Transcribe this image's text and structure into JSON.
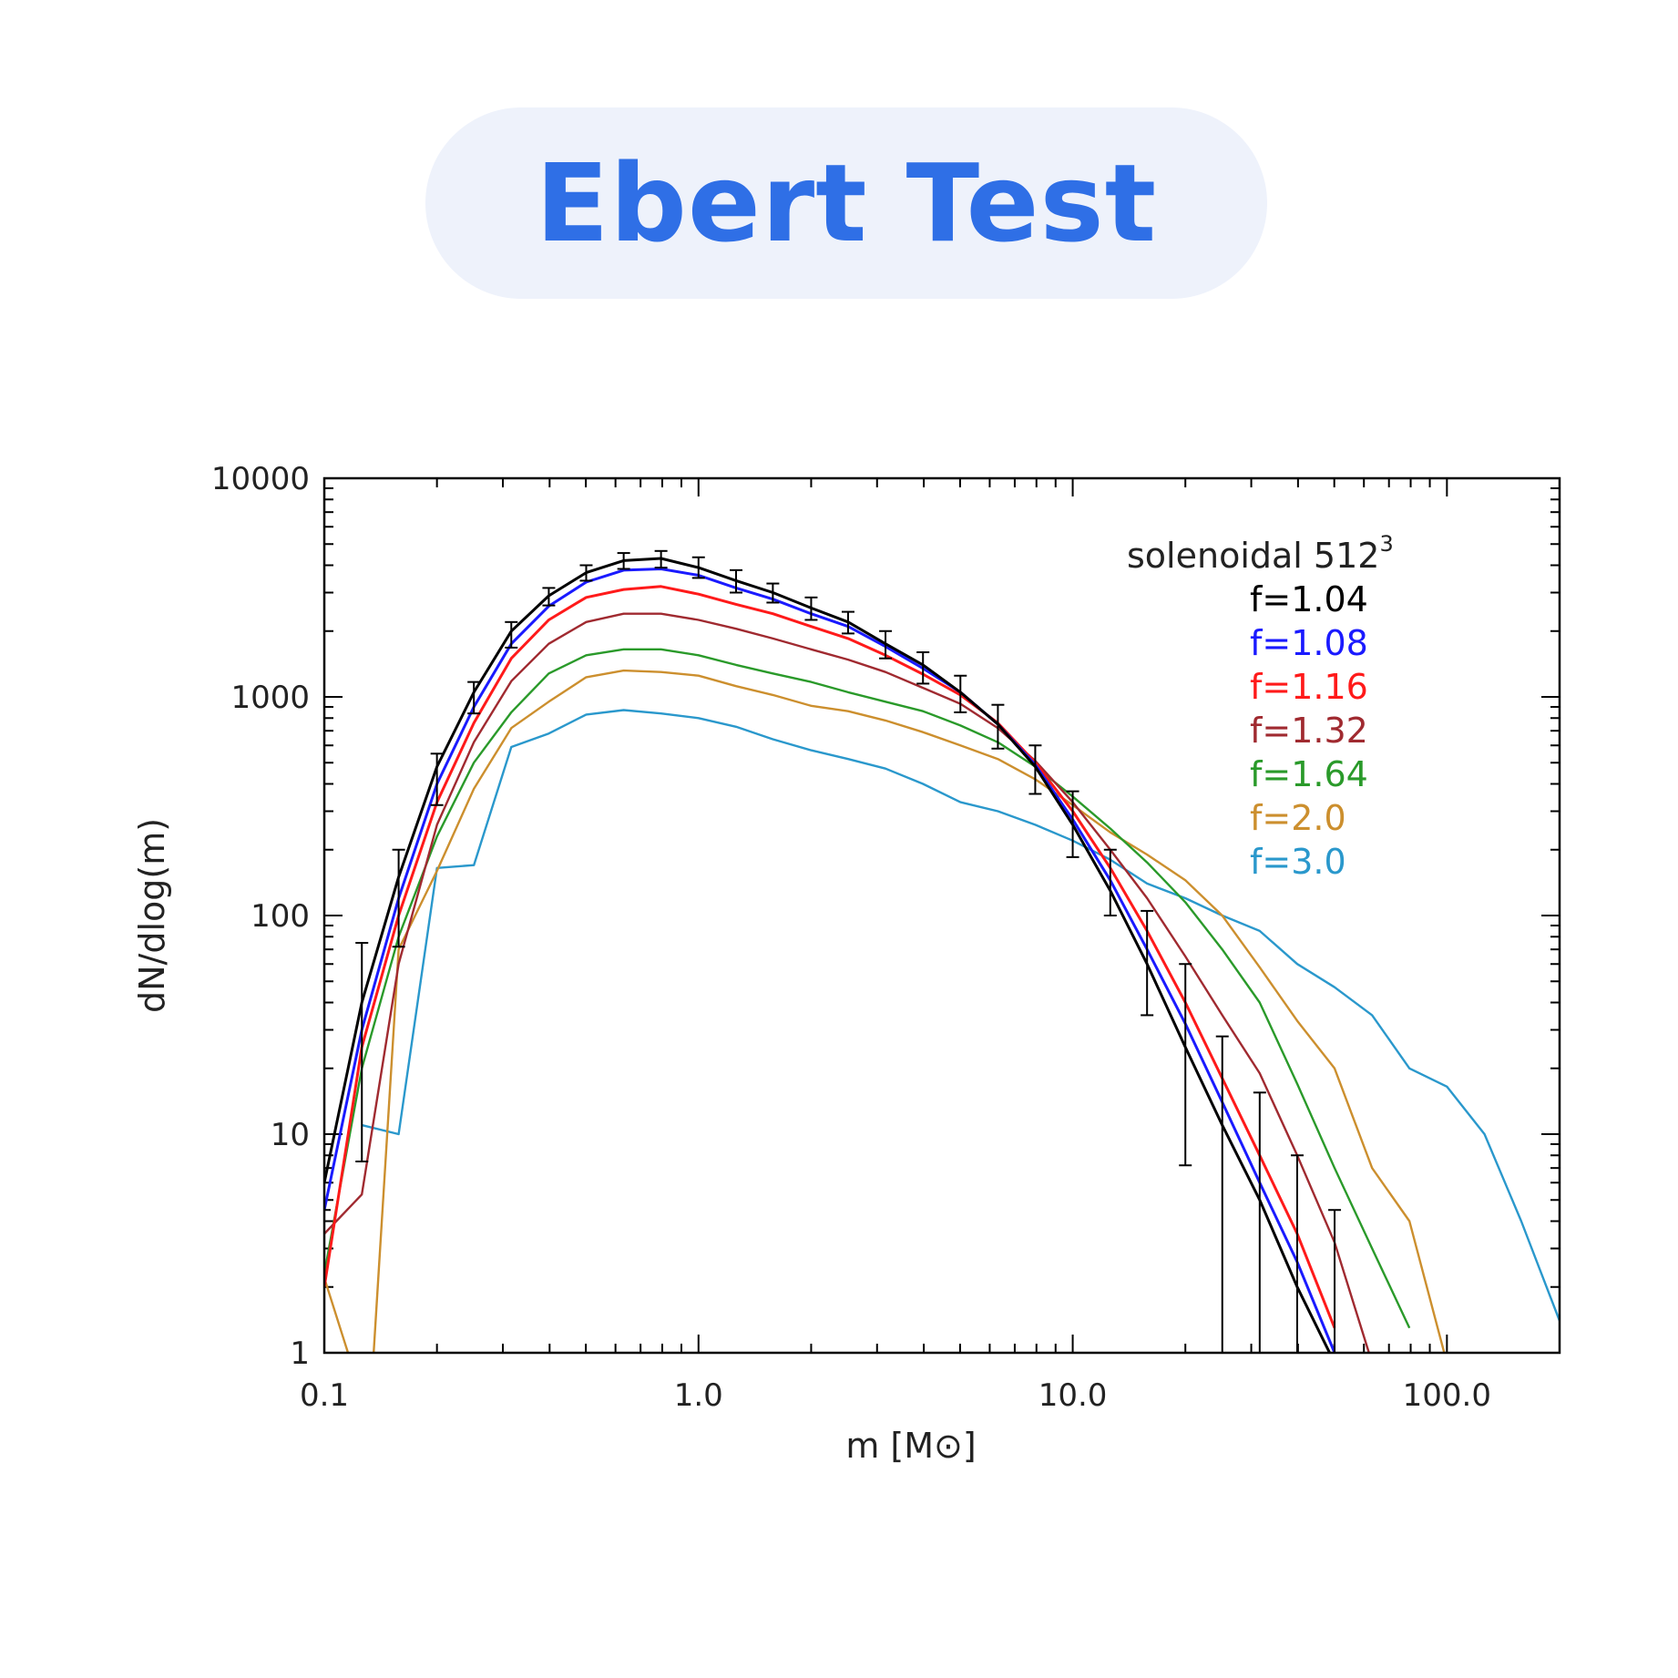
{
  "title": "Ebert Test",
  "chart_data": {
    "type": "line",
    "xscale": "log",
    "yscale": "log",
    "xlim": [
      0.1,
      200
    ],
    "ylim": [
      1,
      10000
    ],
    "xlabel": "m [M⊙]",
    "ylabel": "dN/dlog(m)",
    "xticks": [
      "0.1",
      "1.0",
      "10.0",
      "100.0"
    ],
    "yticks": [
      "1",
      "10",
      "100",
      "1000",
      "10000"
    ],
    "legend_title": "solenoidal  512",
    "legend_title_sup": "3",
    "legend_position": "top-right",
    "series": [
      {
        "name": "f=1.04",
        "color": "#000000",
        "x": [
          0.1,
          0.126,
          0.158,
          0.2,
          0.251,
          0.316,
          0.398,
          0.501,
          0.631,
          0.794,
          1.0,
          1.26,
          1.58,
          2.0,
          2.51,
          3.16,
          3.98,
          5.01,
          6.31,
          7.94,
          10.0,
          12.6,
          15.8,
          20.0,
          25.1,
          31.6,
          39.8,
          50.1
        ],
        "y": [
          6,
          40,
          150,
          480,
          1050,
          2000,
          2900,
          3700,
          4200,
          4300,
          3900,
          3400,
          3000,
          2550,
          2200,
          1750,
          1400,
          1050,
          750,
          480,
          260,
          130,
          60,
          25,
          11,
          5,
          2,
          0.9
        ]
      },
      {
        "name": "f=1.08",
        "color": "#1a1aff",
        "x": [
          0.1,
          0.126,
          0.158,
          0.2,
          0.251,
          0.316,
          0.398,
          0.501,
          0.631,
          0.794,
          1.0,
          1.26,
          1.58,
          2.0,
          2.51,
          3.16,
          3.98,
          5.01,
          6.31,
          7.94,
          10.0,
          12.6,
          15.8,
          20.0,
          25.1,
          31.6,
          39.8,
          50.1
        ],
        "y": [
          4.5,
          30,
          120,
          400,
          900,
          1750,
          2600,
          3350,
          3800,
          3850,
          3600,
          3150,
          2800,
          2400,
          2100,
          1700,
          1350,
          1050,
          750,
          490,
          275,
          145,
          70,
          32,
          14,
          6,
          2.6,
          1
        ]
      },
      {
        "name": "f=1.16",
        "color": "#ff1a1a",
        "x": [
          0.1,
          0.126,
          0.158,
          0.2,
          0.251,
          0.316,
          0.398,
          0.501,
          0.631,
          0.794,
          1.0,
          1.26,
          1.58,
          2.0,
          2.51,
          3.16,
          3.98,
          5.01,
          6.31,
          7.94,
          10.0,
          12.6,
          15.8,
          20.0,
          25.1,
          31.6,
          39.8,
          50.1
        ],
        "y": [
          2,
          25,
          100,
          330,
          760,
          1500,
          2250,
          2850,
          3100,
          3200,
          2950,
          2650,
          2400,
          2100,
          1850,
          1550,
          1270,
          1020,
          760,
          500,
          300,
          165,
          85,
          40,
          18,
          8,
          3.5,
          1.3
        ]
      },
      {
        "name": "f=1.32",
        "color": "#a02a30",
        "x": [
          0.1,
          0.126,
          0.158,
          0.2,
          0.251,
          0.316,
          0.398,
          0.501,
          0.631,
          0.794,
          1.0,
          1.26,
          1.58,
          2.0,
          2.51,
          3.16,
          3.98,
          5.01,
          6.31,
          7.94,
          10.0,
          12.6,
          15.8,
          20.0,
          25.1,
          31.6,
          39.8,
          50.1,
          63.1
        ],
        "y": [
          3.5,
          5.3,
          60,
          260,
          620,
          1180,
          1750,
          2200,
          2400,
          2400,
          2250,
          2050,
          1850,
          1650,
          1480,
          1300,
          1100,
          930,
          720,
          510,
          330,
          200,
          120,
          65,
          35,
          19,
          8,
          3.2,
          0.9
        ]
      },
      {
        "name": "f=1.64",
        "color": "#2a9a2a",
        "x": [
          0.1,
          0.126,
          0.158,
          0.2,
          0.251,
          0.316,
          0.398,
          0.501,
          0.631,
          0.794,
          1.0,
          1.26,
          1.58,
          2.0,
          2.51,
          3.16,
          3.98,
          5.01,
          6.31,
          7.94,
          10.0,
          12.6,
          15.8,
          20.0,
          25.1,
          31.6,
          39.8,
          50.1,
          63.1,
          79.4
        ],
        "y": [
          2.3,
          20,
          80,
          230,
          500,
          850,
          1280,
          1550,
          1650,
          1650,
          1550,
          1400,
          1280,
          1170,
          1050,
          950,
          860,
          740,
          620,
          480,
          350,
          250,
          175,
          115,
          70,
          40,
          17,
          7,
          3,
          1.3
        ]
      },
      {
        "name": "f=2.0",
        "color": "#cc8f2e",
        "x": [
          0.1,
          0.118,
          0.135,
          0.158,
          0.2,
          0.251,
          0.316,
          0.398,
          0.501,
          0.631,
          0.794,
          1.0,
          1.26,
          1.58,
          2.0,
          2.51,
          3.16,
          3.98,
          5.01,
          6.31,
          7.94,
          10.0,
          12.6,
          15.8,
          20.0,
          25.1,
          31.6,
          39.8,
          50.1,
          63.1,
          79.4,
          100
        ],
        "y": [
          2.2,
          0.9,
          0.9,
          70,
          160,
          380,
          720,
          950,
          1230,
          1320,
          1300,
          1250,
          1120,
          1020,
          910,
          860,
          780,
          690,
          600,
          520,
          420,
          320,
          240,
          190,
          145,
          100,
          58,
          33,
          20,
          7,
          4,
          0.9
        ]
      },
      {
        "name": "f=3.0",
        "color": "#2a98cc",
        "x": [
          0.126,
          0.158,
          0.2,
          0.251,
          0.316,
          0.398,
          0.501,
          0.631,
          0.794,
          1.0,
          1.26,
          1.58,
          2.0,
          2.51,
          3.16,
          3.98,
          5.01,
          6.31,
          7.94,
          10.0,
          12.6,
          15.8,
          20.0,
          25.1,
          31.6,
          39.8,
          50.1,
          63.1,
          79.4,
          100,
          126,
          158,
          200
        ],
        "y": [
          11,
          10,
          165,
          170,
          590,
          680,
          830,
          870,
          840,
          800,
          730,
          640,
          570,
          520,
          470,
          400,
          330,
          300,
          260,
          220,
          180,
          140,
          120,
          100,
          85,
          60,
          47,
          35,
          20,
          16.5,
          10,
          4,
          1.4
        ]
      }
    ],
    "errorbars": {
      "color": "#000000",
      "x": [
        0.1,
        0.126,
        0.158,
        0.2,
        0.251,
        0.316,
        0.398,
        0.501,
        0.631,
        0.794,
        1.0,
        1.26,
        1.58,
        2.0,
        2.51,
        3.16,
        3.98,
        5.01,
        6.31,
        7.94,
        10.0,
        12.6,
        15.8,
        20.0,
        25.1,
        31.6,
        39.8,
        50.1
      ],
      "low": [
        4.5,
        7.5,
        72,
        320,
        840,
        1680,
        2620,
        3400,
        3850,
        3900,
        3500,
        3000,
        2700,
        2250,
        1950,
        1500,
        1150,
        850,
        580,
        360,
        185,
        100,
        35,
        7.2,
        0.9,
        0.9,
        0.9,
        0.9
      ],
      "high": [
        9,
        75,
        200,
        550,
        1170,
        2200,
        3150,
        4000,
        4550,
        4650,
        4350,
        3800,
        3300,
        2850,
        2450,
        2000,
        1600,
        1250,
        920,
        600,
        370,
        200,
        105,
        60,
        28,
        15.5,
        8,
        4.5
      ]
    }
  }
}
